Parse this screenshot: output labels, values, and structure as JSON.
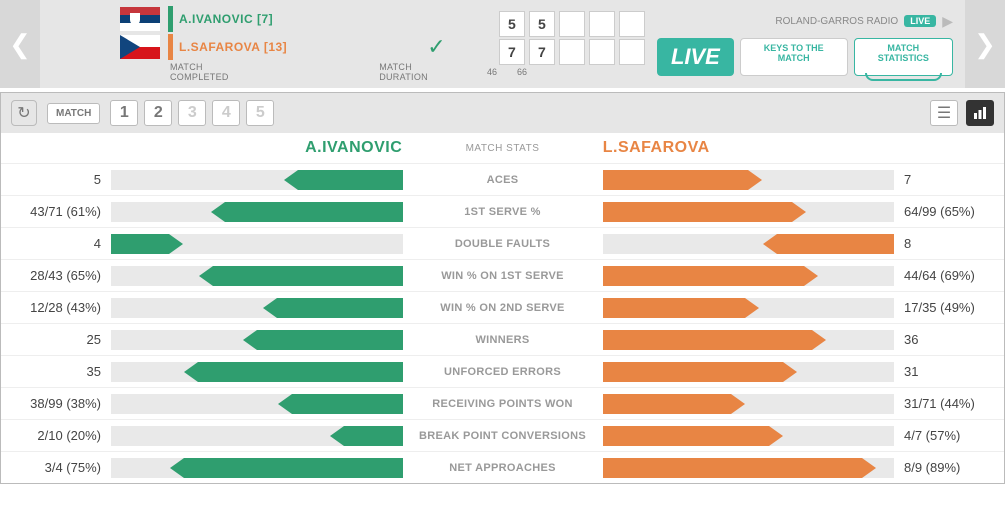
{
  "colors": {
    "player1": "#2f9e6f",
    "player2": "#e88544",
    "accent": "#38b6a2",
    "grey_bg": "#e6e6e6",
    "bar_bg": "#e9e9e9",
    "text_muted": "#999999"
  },
  "header": {
    "player1": {
      "name": "A.IVANOVIC [7]",
      "flag": "rs"
    },
    "player2": {
      "name": "L.SAFAROVA [13]",
      "flag": "cz",
      "winner": true
    },
    "match_completed_label": "MATCH COMPLETED",
    "match_duration_label": "MATCH DURATION",
    "sets": [
      {
        "p1": "5",
        "p2": "7",
        "duration": "46"
      },
      {
        "p1": "5",
        "p2": "7",
        "duration": "66"
      },
      {
        "p1": "",
        "p2": "",
        "duration": ""
      },
      {
        "p1": "",
        "p2": "",
        "duration": ""
      },
      {
        "p1": "",
        "p2": "",
        "duration": ""
      }
    ],
    "radio_label": "ROLAND-GARROS RADIO",
    "live_badge": "LIVE",
    "buttons": {
      "live": "LIVE",
      "keys": "KEYS TO THE MATCH",
      "stats": "MATCH STATISTICS"
    }
  },
  "panel": {
    "match_label": "MATCH",
    "set_buttons": [
      "1",
      "2",
      "3",
      "4",
      "5"
    ],
    "active_sets": 2
  },
  "stats": {
    "p1_name": "A.IVANOVIC",
    "p2_name": "L.SAFAROVA",
    "mid_label": "MATCH STATS",
    "rows": [
      {
        "label": "ACES",
        "l_text": "5",
        "r_text": "7",
        "l_pct": 36,
        "r_pct": 50,
        "reverse": false
      },
      {
        "label": "1ST SERVE %",
        "l_text": "43/71 (61%)",
        "r_text": "64/99 (65%)",
        "l_pct": 61,
        "r_pct": 65,
        "reverse": false
      },
      {
        "label": "DOUBLE FAULTS",
        "l_text": "4",
        "r_text": "8",
        "l_pct": 20,
        "r_pct": 40,
        "reverse": true
      },
      {
        "label": "WIN % ON 1ST SERVE",
        "l_text": "28/43 (65%)",
        "r_text": "44/64 (69%)",
        "l_pct": 65,
        "r_pct": 69,
        "reverse": false
      },
      {
        "label": "WIN % ON 2ND SERVE",
        "l_text": "12/28 (43%)",
        "r_text": "17/35 (49%)",
        "l_pct": 43,
        "r_pct": 49,
        "reverse": false
      },
      {
        "label": "WINNERS",
        "l_text": "25",
        "r_text": "36",
        "l_pct": 50,
        "r_pct": 72,
        "reverse": false
      },
      {
        "label": "UNFORCED ERRORS",
        "l_text": "35",
        "r_text": "31",
        "l_pct": 70,
        "r_pct": 62,
        "reverse": false
      },
      {
        "label": "RECEIVING POINTS WON",
        "l_text": "38/99 (38%)",
        "r_text": "31/71 (44%)",
        "l_pct": 38,
        "r_pct": 44,
        "reverse": false
      },
      {
        "label": "BREAK POINT CONVERSIONS",
        "l_text": "2/10 (20%)",
        "r_text": "4/7 (57%)",
        "l_pct": 20,
        "r_pct": 57,
        "reverse": false
      },
      {
        "label": "NET APPROACHES",
        "l_text": "3/4 (75%)",
        "r_text": "8/9 (89%)",
        "l_pct": 75,
        "r_pct": 89,
        "reverse": false
      }
    ]
  }
}
